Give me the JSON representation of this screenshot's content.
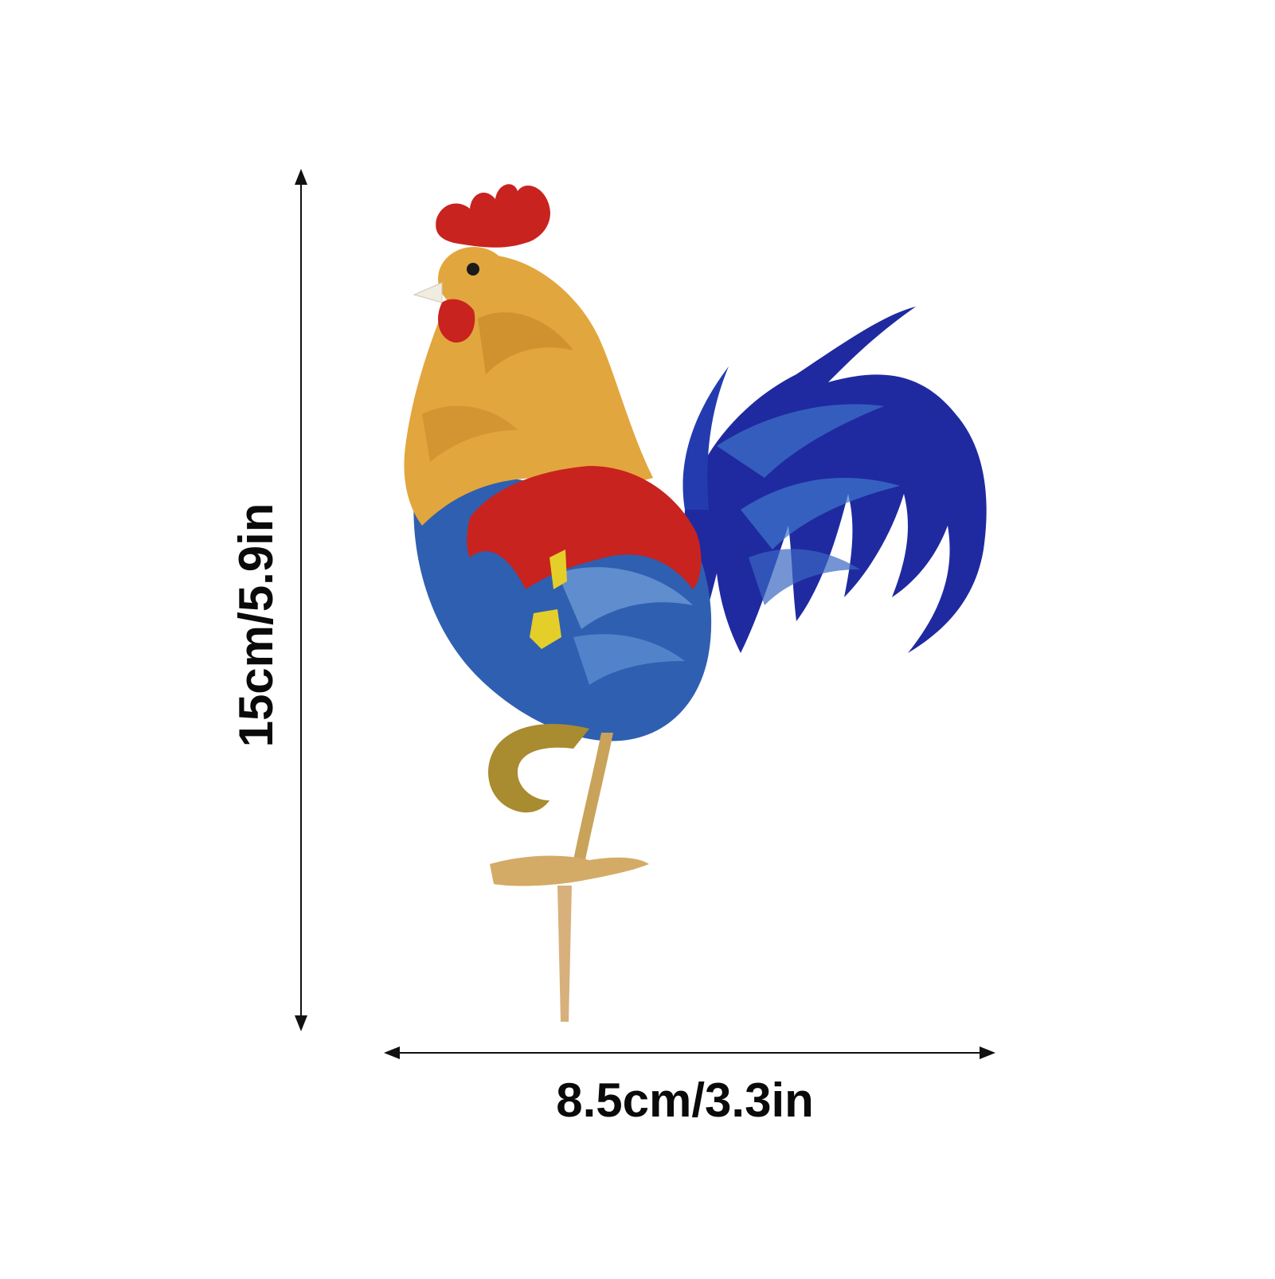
{
  "product": {
    "subject": "rooster-garden-stake",
    "dimensions": {
      "height_label": "15cm/5.9in",
      "width_label": "8.5cm/3.3in"
    }
  },
  "colors": {
    "background": "#ffffff",
    "comb_red": "#c8231f",
    "neck_gold": "#e2a63e",
    "body_blue": "#2f5fb0",
    "tail_navy": "#1f2aa0",
    "leg_tan": "#c9a35a",
    "wing_yellow": "#e4cf2a",
    "dimension_lines": "#111111"
  }
}
